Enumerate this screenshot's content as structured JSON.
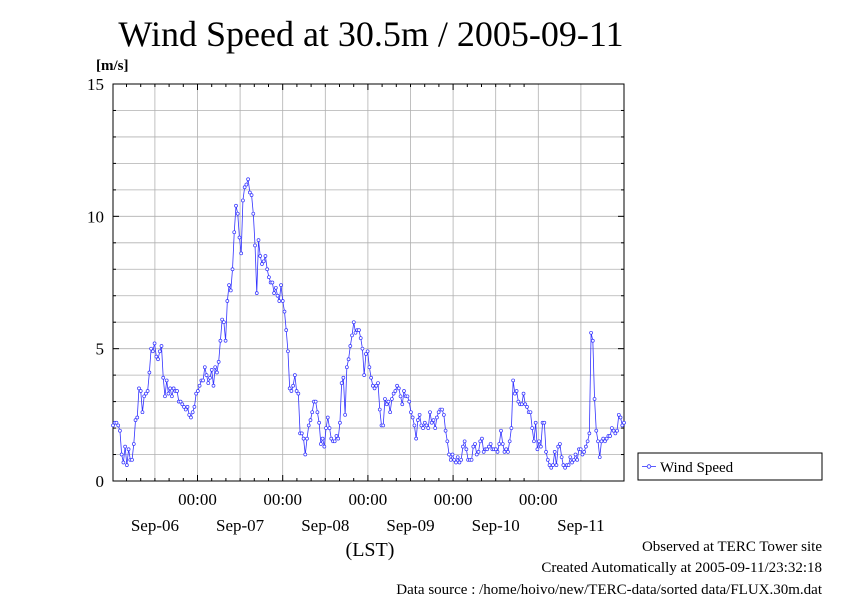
{
  "chart_data": {
    "type": "line",
    "title": "Wind Speed at 30.5m / 2005-09-11",
    "ylabel": "[m/s]",
    "xlabel": "(LST)",
    "ylim": [
      0,
      15
    ],
    "y_ticks": [
      "0",
      "5",
      "10",
      "15"
    ],
    "x_time_ticks": [
      "00:00",
      "00:00",
      "00:00",
      "00:00",
      "00:00"
    ],
    "x_date_labels": [
      "Sep-06",
      "Sep-07",
      "Sep-08",
      "Sep-09",
      "Sep-10",
      "Sep-11"
    ],
    "grid": true,
    "legend_position": "right",
    "series": [
      {
        "name": "Wind Speed",
        "color": "#3333ff",
        "values": [
          2.1,
          2.2,
          2.2,
          2.1,
          1.9,
          1.0,
          0.7,
          1.3,
          0.6,
          1.2,
          0.8,
          0.8,
          1.4,
          2.3,
          2.4,
          3.5,
          3.4,
          2.6,
          3.2,
          3.3,
          3.4,
          4.1,
          5.0,
          4.9,
          5.2,
          4.7,
          4.6,
          4.9,
          5.1,
          3.9,
          3.2,
          3.8,
          3.3,
          3.5,
          3.2,
          3.5,
          3.4,
          3.4,
          3.0,
          3.0,
          2.9,
          2.8,
          2.7,
          2.8,
          2.5,
          2.4,
          2.6,
          2.8,
          3.3,
          3.4,
          3.6,
          3.8,
          3.8,
          4.3,
          4.0,
          3.7,
          3.9,
          4.2,
          3.6,
          4.3,
          4.1,
          4.5,
          5.3,
          6.1,
          6.0,
          5.3,
          6.8,
          7.4,
          7.2,
          8.0,
          9.4,
          10.4,
          10.1,
          9.2,
          8.6,
          10.6,
          11.1,
          11.2,
          11.4,
          10.9,
          10.8,
          10.1,
          8.9,
          7.1,
          9.1,
          8.5,
          8.2,
          8.3,
          8.5,
          8.0,
          7.7,
          7.5,
          7.5,
          7.1,
          7.3,
          7.0,
          6.8,
          7.4,
          6.8,
          6.4,
          5.7,
          4.9,
          3.5,
          3.4,
          3.6,
          4.0,
          3.4,
          3.3,
          1.8,
          1.8,
          1.6,
          1.0,
          1.6,
          2.1,
          2.3,
          2.6,
          3.0,
          3.0,
          2.6,
          2.2,
          1.4,
          1.6,
          1.3,
          2.0,
          2.4,
          2.0,
          1.6,
          1.5,
          1.5,
          1.7,
          1.6,
          2.2,
          3.7,
          3.9,
          2.5,
          4.3,
          4.6,
          5.1,
          5.5,
          6.0,
          5.6,
          5.7,
          5.7,
          5.4,
          5.0,
          4.0,
          4.8,
          4.9,
          4.3,
          3.9,
          3.6,
          3.5,
          3.6,
          3.7,
          2.7,
          2.1,
          2.1,
          3.1,
          2.9,
          3.0,
          2.6,
          3.1,
          3.3,
          3.4,
          3.6,
          3.5,
          3.2,
          2.9,
          3.4,
          3.2,
          3.2,
          3.0,
          2.6,
          2.4,
          2.1,
          1.6,
          2.3,
          2.5,
          2.1,
          2.0,
          2.2,
          2.1,
          2.0,
          2.6,
          2.2,
          2.3,
          2.0,
          2.4,
          2.6,
          2.7,
          2.7,
          2.5,
          1.9,
          1.5,
          1.0,
          0.8,
          1.0,
          0.8,
          0.7,
          0.9,
          0.7,
          0.8,
          1.3,
          1.5,
          1.2,
          0.8,
          0.8,
          0.8,
          1.3,
          1.4,
          1.0,
          1.1,
          1.5,
          1.6,
          1.1,
          1.2,
          1.2,
          1.3,
          1.4,
          1.2,
          1.2,
          1.2,
          1.1,
          1.4,
          1.9,
          1.4,
          1.1,
          1.2,
          1.1,
          1.5,
          2.0,
          3.8,
          3.3,
          3.4,
          3.0,
          2.9,
          2.9,
          3.3,
          2.9,
          2.8,
          2.6,
          2.6,
          2.0,
          1.5,
          2.2,
          1.2,
          1.5,
          1.3,
          2.2,
          2.2,
          1.1,
          0.8,
          0.6,
          0.5,
          0.6,
          1.1,
          0.6,
          1.3,
          1.4,
          0.9,
          0.6,
          0.5,
          0.6,
          0.6,
          0.9,
          0.7,
          0.8,
          1.0,
          0.8,
          1.2,
          1.2,
          1.0,
          1.1,
          1.3,
          1.5,
          1.8,
          5.6,
          5.3,
          3.1,
          1.9,
          1.5,
          0.9,
          1.5,
          1.6,
          1.5,
          1.6,
          1.7,
          1.7,
          2.0,
          1.9,
          1.8,
          1.9,
          2.5,
          2.4,
          2.1,
          2.2
        ]
      }
    ]
  },
  "notes": {
    "observed": "Observed at TERC Tower site",
    "created": "Created Automatically at 2005-09-11/23:32:18",
    "source": "Data source : /home/hoivo/new/TERC-data/sorted  data/FLUX.30m.dat"
  }
}
